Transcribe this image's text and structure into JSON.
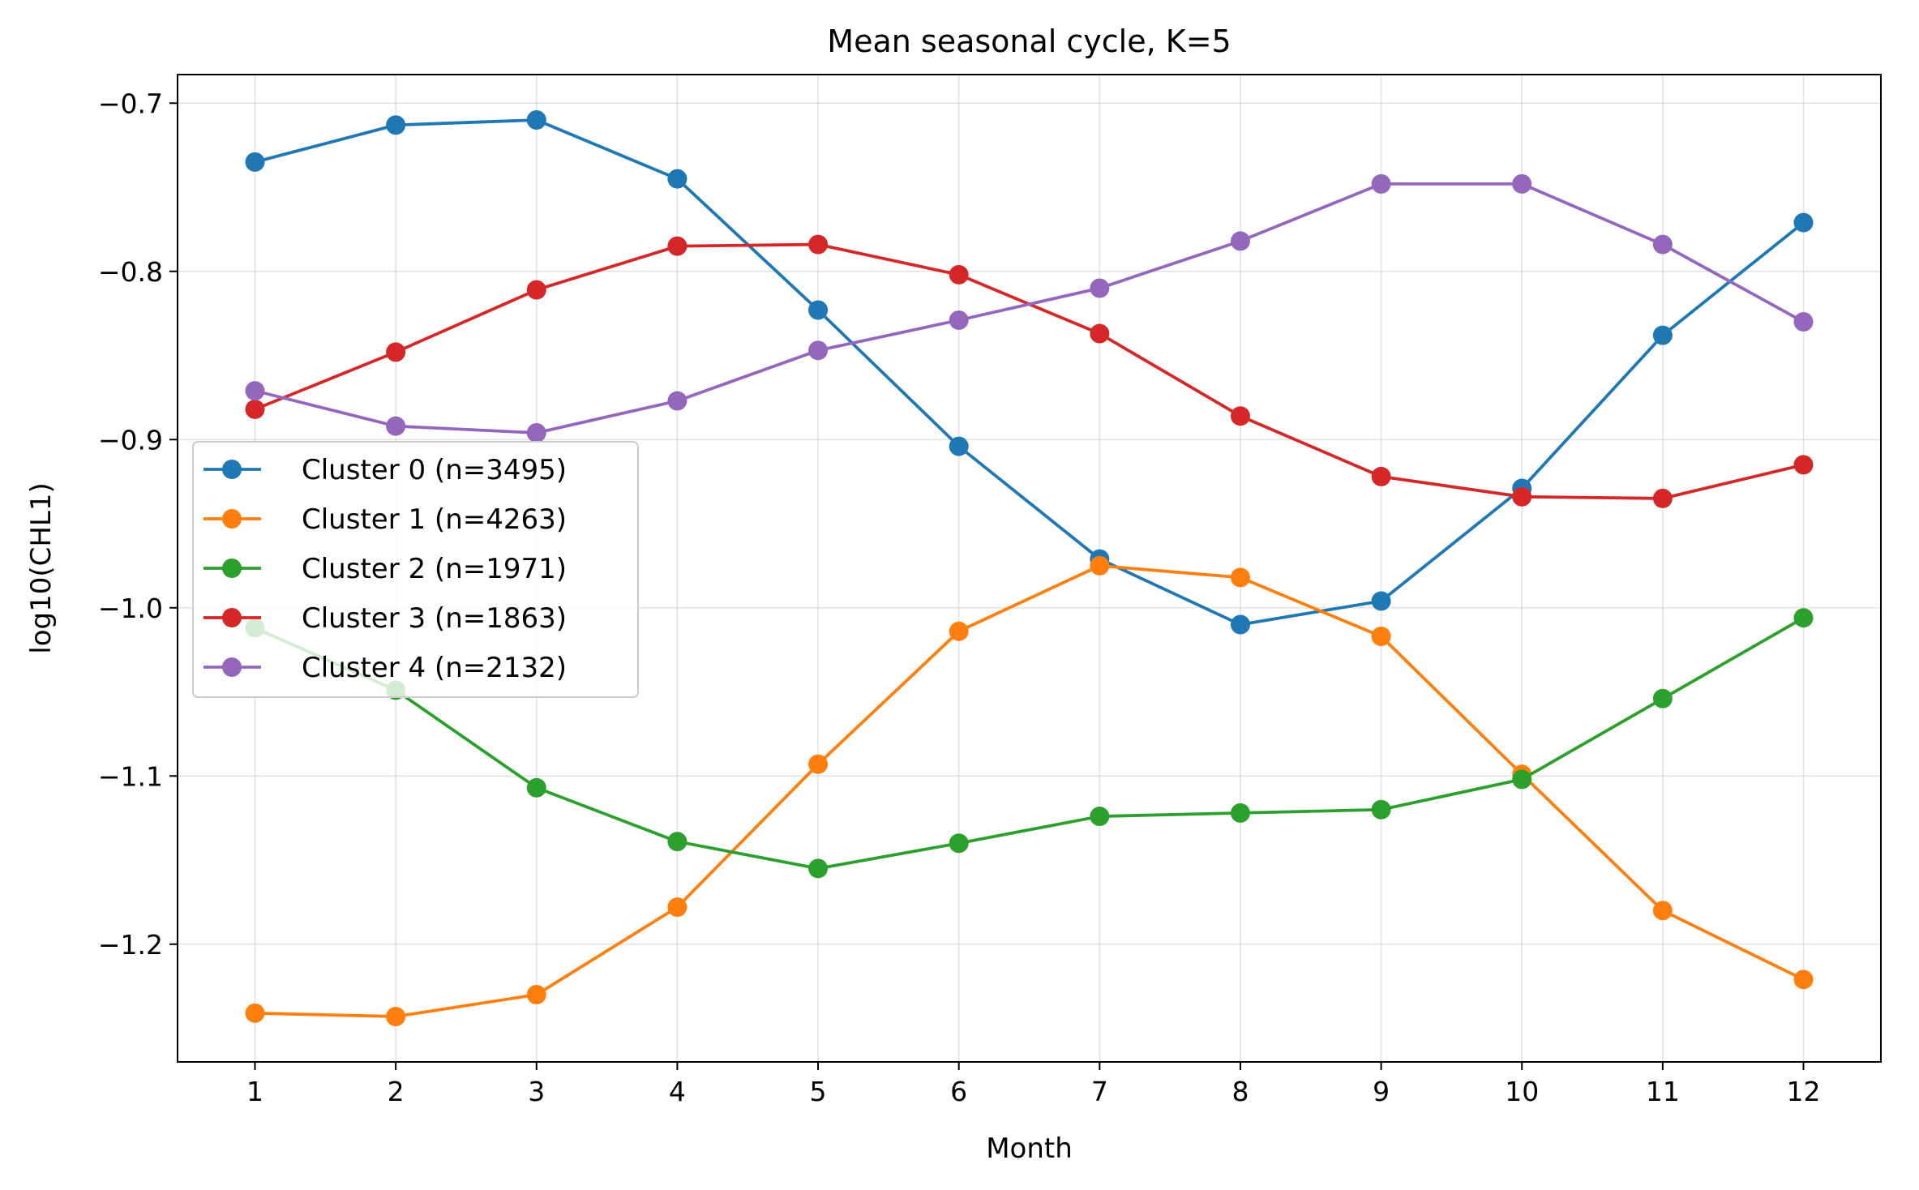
{
  "chart_data": {
    "type": "line",
    "title": "Mean seasonal cycle, K=5",
    "xlabel": "Month",
    "ylabel": "log10(CHL1)",
    "x": [
      1,
      2,
      3,
      4,
      5,
      6,
      7,
      8,
      9,
      10,
      11,
      12
    ],
    "xlim": [
      0.45,
      12.55
    ],
    "ylim": [
      -1.27,
      -0.683
    ],
    "x_ticks": [
      "1",
      "2",
      "3",
      "4",
      "5",
      "6",
      "7",
      "8",
      "9",
      "10",
      "11",
      "12"
    ],
    "y_ticks": [
      {
        "value": -0.7,
        "label": "−0.7"
      },
      {
        "value": -0.8,
        "label": "−0.8"
      },
      {
        "value": -0.9,
        "label": "−0.9"
      },
      {
        "value": -1.0,
        "label": "−1.0"
      },
      {
        "value": -1.1,
        "label": "−1.1"
      },
      {
        "value": -1.2,
        "label": "−1.2"
      }
    ],
    "grid": true,
    "legend_position": "center-left",
    "series": [
      {
        "name": "Cluster 0 (n=3495)",
        "color": "#1f77b4",
        "values": [
          -0.735,
          -0.713,
          -0.71,
          -0.745,
          -0.823,
          -0.904,
          -0.971,
          -1.01,
          -0.996,
          -0.929,
          -0.838,
          -0.771
        ]
      },
      {
        "name": "Cluster 1 (n=4263)",
        "color": "#ff7f0e",
        "values": [
          -1.241,
          -1.243,
          -1.23,
          -1.178,
          -1.093,
          -1.014,
          -0.975,
          -0.982,
          -1.017,
          -1.099,
          -1.18,
          -1.221
        ]
      },
      {
        "name": "Cluster 2 (n=1971)",
        "color": "#2ca02c",
        "values": [
          -1.012,
          -1.049,
          -1.107,
          -1.139,
          -1.155,
          -1.14,
          -1.124,
          -1.122,
          -1.12,
          -1.102,
          -1.054,
          -1.006
        ]
      },
      {
        "name": "Cluster 3 (n=1863)",
        "color": "#d62728",
        "values": [
          -0.882,
          -0.848,
          -0.811,
          -0.785,
          -0.784,
          -0.802,
          -0.837,
          -0.886,
          -0.922,
          -0.934,
          -0.935,
          -0.915
        ]
      },
      {
        "name": "Cluster 4 (n=2132)",
        "color": "#9467bd",
        "values": [
          -0.871,
          -0.892,
          -0.896,
          -0.877,
          -0.847,
          -0.829,
          -0.81,
          -0.782,
          -0.748,
          -0.748,
          -0.784,
          -0.83
        ]
      }
    ]
  }
}
